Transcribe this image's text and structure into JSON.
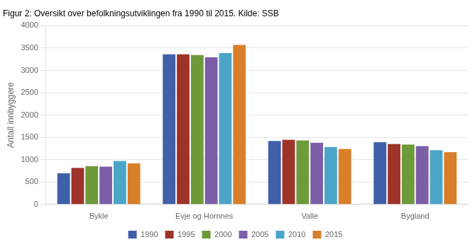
{
  "chart_data": {
    "type": "bar",
    "title": "Figur 2: Oversikt over befolkningsutviklingen fra 1990 til 2015. Kilde: SSB",
    "ylabel": "Antall innbyggere",
    "categories": [
      "Bykle",
      "Evje og Hornnes",
      "Valle",
      "Bygland"
    ],
    "series": [
      {
        "name": "1990",
        "color": "#3f5fa8",
        "values": [
          700,
          3360,
          1420,
          1390
        ]
      },
      {
        "name": "1995",
        "color": "#9e3328",
        "values": [
          815,
          3360,
          1445,
          1350
        ]
      },
      {
        "name": "2000",
        "color": "#6e9a3a",
        "values": [
          855,
          3345,
          1430,
          1340
        ]
      },
      {
        "name": "2005",
        "color": "#7b5ea7",
        "values": [
          845,
          3295,
          1380,
          1305
        ]
      },
      {
        "name": "2010",
        "color": "#4aa5c8",
        "values": [
          970,
          3390,
          1285,
          1215
        ]
      },
      {
        "name": "2015",
        "color": "#d97f2a",
        "values": [
          920,
          3570,
          1240,
          1170
        ]
      }
    ],
    "ylim": [
      0,
      4000
    ],
    "yticks": [
      0,
      500,
      1000,
      1500,
      2000,
      2500,
      3000,
      3500,
      4000
    ],
    "grid": true,
    "legend": "bottom"
  }
}
